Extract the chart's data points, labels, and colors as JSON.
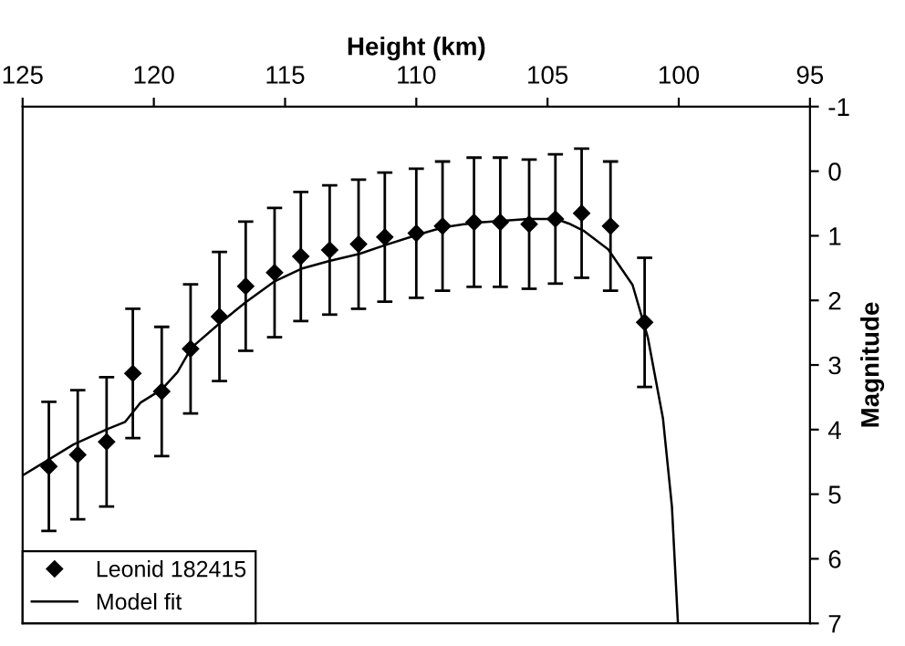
{
  "chart_data": {
    "type": "scatter",
    "xlabel": "Height (km)",
    "ylabel": "Magnitude",
    "xlim": [
      125,
      95
    ],
    "ylim": [
      7,
      -1
    ],
    "xticks": [
      125,
      120,
      115,
      110,
      105,
      100,
      95
    ],
    "yticks": [
      -1,
      0,
      1,
      2,
      3,
      4,
      5,
      6,
      7
    ],
    "grid": false,
    "legend": "bottom left",
    "series": [
      {
        "name": "Leonid 182415",
        "marker": "diamond",
        "color": "#000000",
        "x": [
          124.0,
          122.9,
          121.8,
          120.8,
          119.7,
          118.6,
          117.5,
          116.5,
          115.4,
          114.4,
          113.3,
          112.2,
          111.2,
          110.0,
          109.0,
          107.8,
          106.8,
          105.7,
          104.7,
          103.7,
          102.6,
          101.3
        ],
        "values": [
          4.57,
          4.39,
          4.19,
          3.13,
          3.41,
          2.75,
          2.25,
          1.78,
          1.57,
          1.32,
          1.22,
          1.13,
          1.02,
          0.96,
          0.85,
          0.79,
          0.79,
          0.82,
          0.74,
          0.65,
          0.85,
          2.34
        ],
        "errors": [
          1,
          1,
          1,
          1,
          1,
          1,
          1,
          1,
          1,
          1,
          1,
          1,
          1,
          1,
          1,
          1,
          1,
          1,
          1,
          1,
          1,
          1
        ]
      },
      {
        "name": "Model fit",
        "type": "line",
        "marker": "none",
        "line_style": "solid",
        "color": "#000000",
        "x": [
          125.0,
          123.06,
          121.76,
          121.09,
          120.5,
          119.7,
          119.1,
          118.56,
          117.45,
          116.5,
          115.42,
          114.38,
          113.31,
          112.17,
          111.16,
          110.0,
          108.98,
          107.82,
          105.74,
          104.67,
          104.19,
          103.63,
          102.69,
          101.76,
          101.18,
          100.6,
          100.26,
          100.03
        ],
        "values": [
          4.71,
          4.23,
          3.99,
          3.88,
          3.58,
          3.38,
          3.11,
          2.73,
          2.34,
          2.03,
          1.71,
          1.51,
          1.39,
          1.28,
          1.14,
          0.99,
          0.87,
          0.8,
          0.74,
          0.74,
          0.81,
          0.92,
          1.21,
          1.76,
          2.57,
          3.83,
          5.19,
          7.0
        ]
      }
    ]
  }
}
